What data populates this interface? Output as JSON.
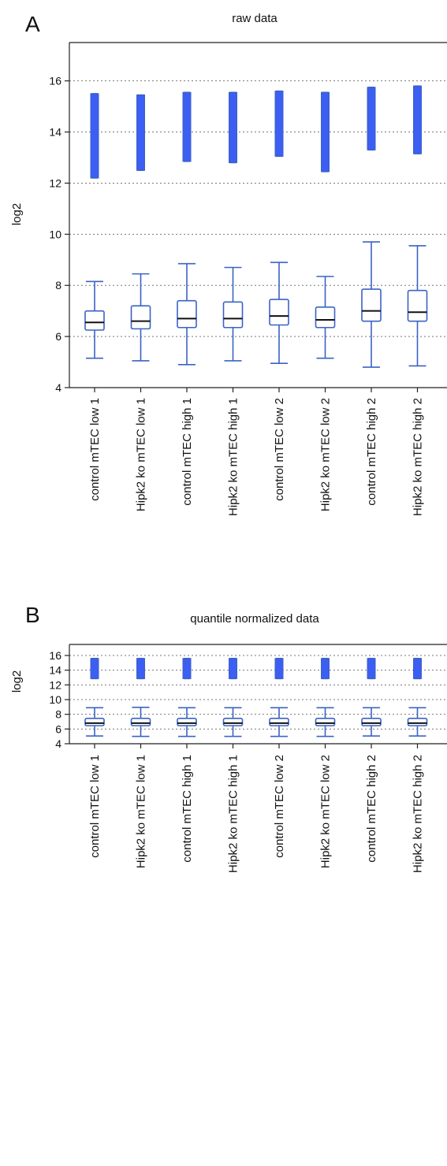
{
  "chart_data": [
    {
      "type": "box",
      "panel_label": "A",
      "title": "raw data",
      "xlabel": "",
      "ylabel": "log2",
      "ylim": [
        4,
        17.5
      ],
      "yticks": [
        4,
        6,
        8,
        10,
        12,
        14,
        16
      ],
      "grid": "dotted horizontal",
      "colors": {
        "box": "#3a63c4",
        "fill": "#3d5ef2",
        "median": "#111111"
      },
      "categories": [
        "control mTEC low 1",
        "Hipk2 ko mTEC low 1",
        "control mTEC high 1",
        "Hipk2 ko mTEC high 1",
        "control mTEC low 2",
        "Hipk2 ko mTEC low 2",
        "control mTEC high 2",
        "Hipk2 ko mTEC high 2"
      ],
      "boxes": [
        {
          "whislo": 5.15,
          "q1": 6.25,
          "med": 6.55,
          "q3": 7.0,
          "whishi": 8.15
        },
        {
          "whislo": 5.05,
          "q1": 6.3,
          "med": 6.6,
          "q3": 7.2,
          "whishi": 8.45
        },
        {
          "whislo": 4.9,
          "q1": 6.35,
          "med": 6.7,
          "q3": 7.4,
          "whishi": 8.85
        },
        {
          "whislo": 5.05,
          "q1": 6.35,
          "med": 6.7,
          "q3": 7.35,
          "whishi": 8.7
        },
        {
          "whislo": 4.95,
          "q1": 6.45,
          "med": 6.8,
          "q3": 7.45,
          "whishi": 8.9
        },
        {
          "whislo": 5.15,
          "q1": 6.35,
          "med": 6.65,
          "q3": 7.15,
          "whishi": 8.35
        },
        {
          "whislo": 4.8,
          "q1": 6.6,
          "med": 7.0,
          "q3": 7.85,
          "whishi": 9.7
        },
        {
          "whislo": 4.85,
          "q1": 6.6,
          "med": 6.95,
          "q3": 7.8,
          "whishi": 9.55
        }
      ],
      "outliers": [
        {
          "lo": 12.2,
          "hi": 15.5
        },
        {
          "lo": 12.5,
          "hi": 15.45
        },
        {
          "lo": 12.85,
          "hi": 15.55
        },
        {
          "lo": 12.8,
          "hi": 15.55
        },
        {
          "lo": 13.05,
          "hi": 15.6
        },
        {
          "lo": 12.45,
          "hi": 15.55
        },
        {
          "lo": 13.3,
          "hi": 15.75
        },
        {
          "lo": 13.15,
          "hi": 15.8
        }
      ]
    },
    {
      "type": "box",
      "panel_label": "B",
      "title": "quantile normalized data",
      "xlabel": "",
      "ylabel": "log2",
      "ylim": [
        4,
        17.5
      ],
      "yticks": [
        4,
        6,
        8,
        10,
        12,
        14,
        16
      ],
      "grid": "dotted horizontal",
      "colors": {
        "box": "#3a63c4",
        "fill": "#3d5ef2",
        "median": "#111111"
      },
      "categories": [
        "control mTEC low 1",
        "Hipk2 ko mTEC low 1",
        "control mTEC high 1",
        "Hipk2 ko mTEC high 1",
        "control mTEC low 2",
        "Hipk2 ko mTEC low 2",
        "control mTEC high 2",
        "Hipk2 ko mTEC high 2"
      ],
      "boxes": [
        {
          "whislo": 5.05,
          "q1": 6.45,
          "med": 6.8,
          "q3": 7.45,
          "whishi": 8.9
        },
        {
          "whislo": 5.0,
          "q1": 6.45,
          "med": 6.8,
          "q3": 7.45,
          "whishi": 8.95
        },
        {
          "whislo": 5.0,
          "q1": 6.45,
          "med": 6.8,
          "q3": 7.45,
          "whishi": 8.9
        },
        {
          "whislo": 5.0,
          "q1": 6.45,
          "med": 6.8,
          "q3": 7.45,
          "whishi": 8.9
        },
        {
          "whislo": 5.0,
          "q1": 6.45,
          "med": 6.8,
          "q3": 7.45,
          "whishi": 8.9
        },
        {
          "whislo": 5.0,
          "q1": 6.45,
          "med": 6.8,
          "q3": 7.45,
          "whishi": 8.9
        },
        {
          "whislo": 5.05,
          "q1": 6.45,
          "med": 6.8,
          "q3": 7.45,
          "whishi": 8.9
        },
        {
          "whislo": 5.05,
          "q1": 6.45,
          "med": 6.8,
          "q3": 7.45,
          "whishi": 8.9
        }
      ],
      "outliers": [
        {
          "lo": 12.85,
          "hi": 15.6
        },
        {
          "lo": 12.85,
          "hi": 15.6
        },
        {
          "lo": 12.85,
          "hi": 15.6
        },
        {
          "lo": 12.85,
          "hi": 15.6
        },
        {
          "lo": 12.85,
          "hi": 15.6
        },
        {
          "lo": 12.85,
          "hi": 15.6
        },
        {
          "lo": 12.85,
          "hi": 15.6
        },
        {
          "lo": 12.85,
          "hi": 15.6
        }
      ]
    }
  ]
}
